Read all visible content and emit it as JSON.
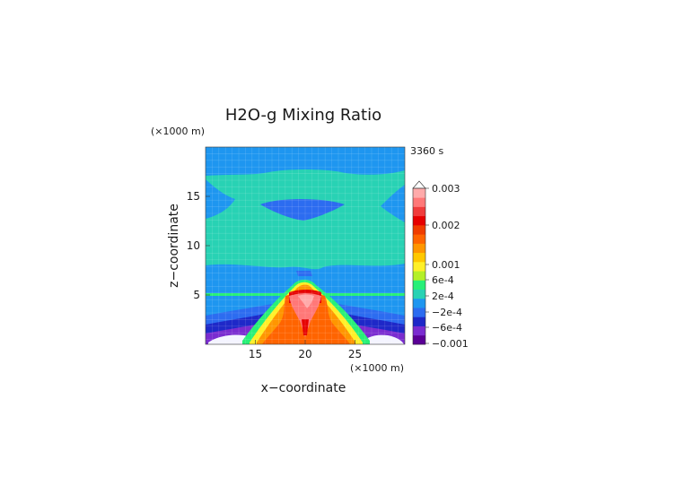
{
  "chart_data": {
    "type": "heatmap",
    "title": "H2O-g Mixing Ratio",
    "time_label": "3360 s",
    "xlabel": "x−coordinate",
    "ylabel": "z−coordinate",
    "x_unit": "(×1000 m)",
    "y_unit": "(×1000 m)",
    "xlim": [
      10,
      30
    ],
    "ylim": [
      0,
      20
    ],
    "xticks": [
      15,
      20,
      25
    ],
    "yticks": [
      5,
      10,
      15
    ],
    "grid": true,
    "colorbar": {
      "levels": [
        -0.001,
        -0.0006,
        -0.0002,
        0.0002,
        0.0006,
        0.001,
        0.002,
        0.003
      ],
      "tick_labels": [
        "0.003",
        "0.002",
        "0.001",
        "6e-4",
        "2e-4",
        "−2e-4",
        "−6e-4",
        "−0.001"
      ],
      "tick_values": [
        0.003,
        0.002,
        0.001,
        0.0006,
        0.0002,
        -0.0002,
        -0.0006,
        -0.001
      ],
      "colors_bottom_to_top": [
        "#5a0096",
        "#7a2cd0",
        "#1e28c8",
        "#2c6cf0",
        "#1e96f0",
        "#28d2b4",
        "#28f078",
        "#b4f028",
        "#fff028",
        "#ffc800",
        "#ff9600",
        "#ff6400",
        "#f03c00",
        "#e60000",
        "#f03c3c",
        "#ff7878",
        "#ffaaaa"
      ]
    },
    "fields": {
      "background": -0.0002,
      "upper_green_band": [
        0.0002,
        0.0006
      ],
      "central_plume_max": 0.003,
      "surface_min": -0.001
    }
  }
}
